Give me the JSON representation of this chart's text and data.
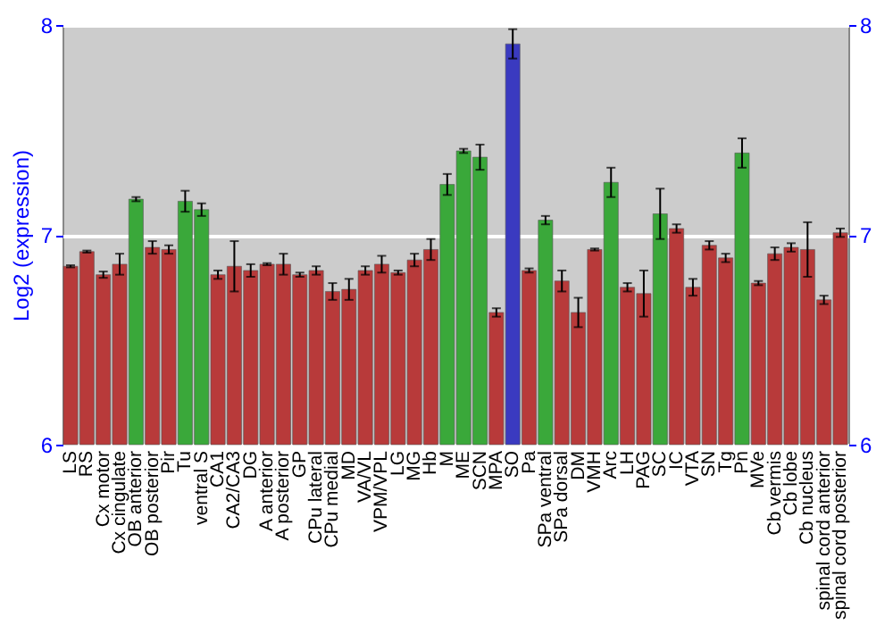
{
  "chart_data": {
    "type": "bar",
    "ylabel": "Log2 (expression)",
    "categories": [
      "LS",
      "RS",
      "Cx motor",
      "Cx cingulate",
      "OB anterior",
      "OB posterior",
      "Pir",
      "Tu",
      "ventral S",
      "CA1",
      "CA2/CA3",
      "DG",
      "A anterior",
      "A posterior",
      "GP",
      "CPu lateral",
      "CPu medial",
      "MD",
      "VA/VL",
      "VPM/VPL",
      "LG",
      "MG",
      "Hb",
      "M",
      "ME",
      "SCN",
      "MPA",
      "SO",
      "Pa",
      "SPa ventral",
      "SPa dorsal",
      "DM",
      "VMH",
      "Arc",
      "LH",
      "PAG",
      "SC",
      "IC",
      "VTA",
      "SN",
      "Tg",
      "Pn",
      "MVe",
      "Cb vermis",
      "Cb lobe",
      "Cb nucleus",
      "spinal cord anterior",
      "spinal cord posterior"
    ],
    "values": [
      6.85,
      6.92,
      6.81,
      6.86,
      7.17,
      6.94,
      6.93,
      7.16,
      7.12,
      6.81,
      6.85,
      6.83,
      6.86,
      6.86,
      6.81,
      6.83,
      6.73,
      6.74,
      6.83,
      6.86,
      6.82,
      6.88,
      6.93,
      7.24,
      7.4,
      7.37,
      6.63,
      7.91,
      6.83,
      7.07,
      6.78,
      6.63,
      6.93,
      7.25,
      6.75,
      6.72,
      7.1,
      7.03,
      6.75,
      6.95,
      6.89,
      7.39,
      6.77,
      6.91,
      6.94,
      6.93,
      6.69,
      7.01
    ],
    "errors": [
      0.005,
      0.005,
      0.015,
      0.05,
      0.01,
      0.03,
      0.02,
      0.05,
      0.03,
      0.02,
      0.12,
      0.03,
      0.005,
      0.05,
      0.01,
      0.02,
      0.04,
      0.05,
      0.02,
      0.04,
      0.01,
      0.03,
      0.05,
      0.05,
      0.01,
      0.06,
      0.02,
      0.07,
      0.01,
      0.02,
      0.05,
      0.07,
      0.005,
      0.07,
      0.02,
      0.11,
      0.12,
      0.02,
      0.04,
      0.02,
      0.02,
      0.07,
      0.01,
      0.03,
      0.02,
      0.13,
      0.02,
      0.02
    ],
    "colors": [
      "#b83a3a",
      "#b83a3a",
      "#b83a3a",
      "#b83a3a",
      "#3aa83a",
      "#b83a3a",
      "#b83a3a",
      "#3aa83a",
      "#3aa83a",
      "#b83a3a",
      "#b83a3a",
      "#b83a3a",
      "#b83a3a",
      "#b83a3a",
      "#b83a3a",
      "#b83a3a",
      "#b83a3a",
      "#b83a3a",
      "#b83a3a",
      "#b83a3a",
      "#b83a3a",
      "#b83a3a",
      "#b83a3a",
      "#3aa83a",
      "#3aa83a",
      "#3aa83a",
      "#b83a3a",
      "#3a3ac0",
      "#b83a3a",
      "#3aa83a",
      "#b83a3a",
      "#b83a3a",
      "#b83a3a",
      "#3aa83a",
      "#b83a3a",
      "#b83a3a",
      "#3aa83a",
      "#b83a3a",
      "#b83a3a",
      "#b83a3a",
      "#b83a3a",
      "#3aa83a",
      "#b83a3a",
      "#b83a3a",
      "#b83a3a",
      "#b83a3a",
      "#b83a3a",
      "#b83a3a"
    ],
    "ylim": [
      6,
      8
    ],
    "yticks": [
      6,
      7,
      8
    ],
    "y2lim": [
      6,
      8
    ],
    "y2ticks": [
      6,
      7,
      8
    ],
    "grid": "y"
  }
}
